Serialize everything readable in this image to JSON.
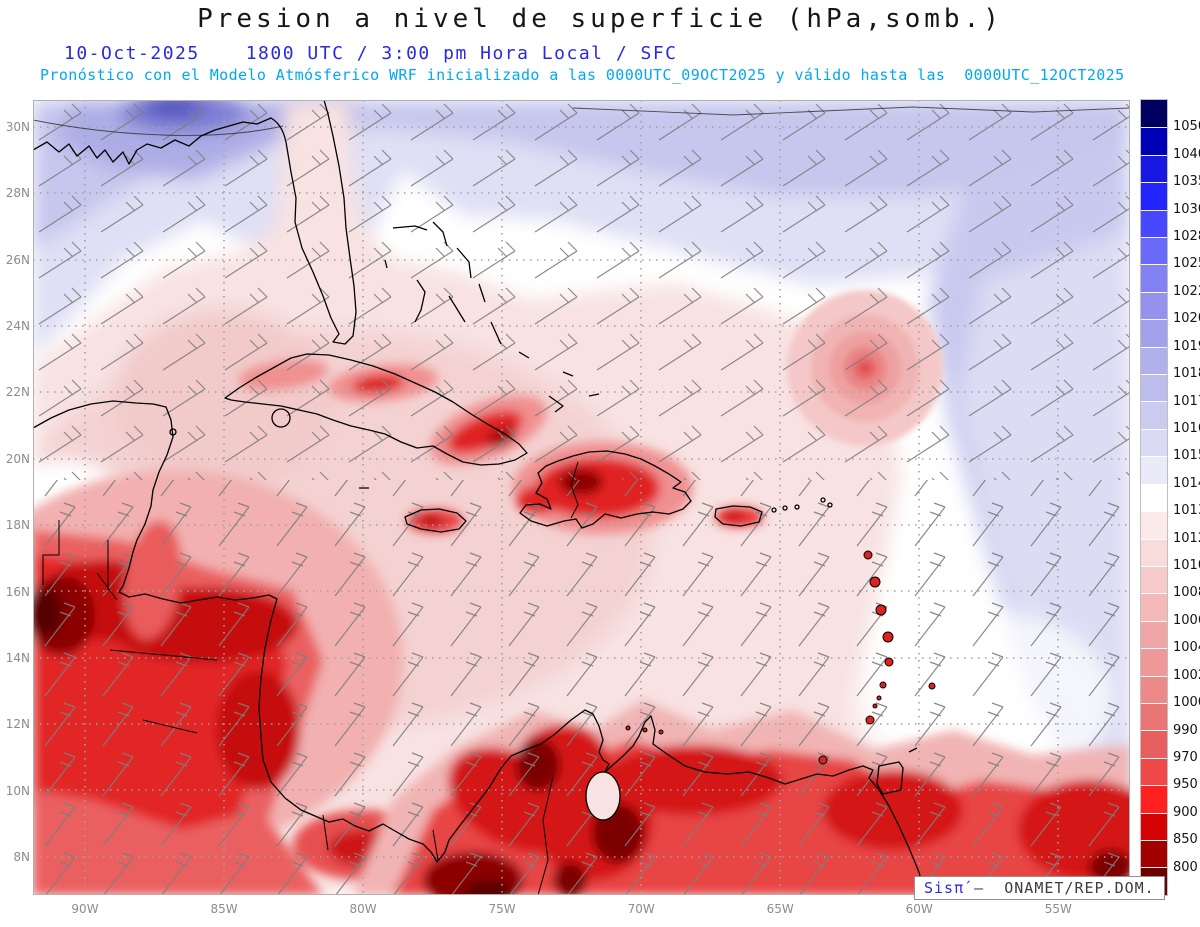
{
  "header": {
    "title": "Presion a nivel de superficie (hPa,somb.)",
    "date": "10-Oct-2025",
    "time": "1800 UTC / 3:00 pm Hora Local / SFC",
    "forecast": "Pronóstico con el Modelo Atmósferico WRF inicializado a las 0000UTC_09OCT2025 y válido hasta las  0000UTC_12OCT2025"
  },
  "axes": {
    "lat_ticks": [
      "30N",
      "28N",
      "26N",
      "24N",
      "22N",
      "20N",
      "18N",
      "16N",
      "14N",
      "12N",
      "10N",
      "8N"
    ],
    "lon_ticks": [
      "90W",
      "85W",
      "80W",
      "75W",
      "70W",
      "65W",
      "60W",
      "55W"
    ]
  },
  "colorbar": {
    "unit": "hPa",
    "labels": [
      "1050",
      "1040",
      "1035",
      "1030",
      "1028",
      "1025",
      "1022",
      "1020",
      "1019",
      "1018",
      "1017",
      "1016",
      "1015",
      "1014",
      "1013",
      "1012",
      "1010",
      "1008",
      "1006",
      "1004",
      "1002",
      "1000",
      "990",
      "970",
      "950",
      "900",
      "850",
      "800"
    ],
    "colors": [
      "#000060",
      "#0000b8",
      "#1818e0",
      "#2424ff",
      "#4848ff",
      "#6a6af8",
      "#8282f2",
      "#9393ee",
      "#a2a2ec",
      "#b0b0ea",
      "#bdbdec",
      "#cbcbf0",
      "#dadaf4",
      "#eaeaf9",
      "#ffffff",
      "#fceaea",
      "#f9dbdb",
      "#f6caca",
      "#f3b8b8",
      "#f0a6a6",
      "#ee9898",
      "#ec8989",
      "#ea7575",
      "#e85f5f",
      "#ef4848",
      "#ff2020",
      "#d40404",
      "#a30000",
      "#6b0000"
    ]
  },
  "watermark": {
    "brand": "Sisπ́",
    "text": " –  ONAMET/REP.DOM."
  },
  "colors": {
    "title_text": "#161616",
    "subtitle_blue": "#2a2ae0",
    "forecast_cyan": "#00a8f2",
    "axis_gray": "#8c8c8c",
    "low_pressure_red": "#d41212",
    "high_pressure_blue": "#4848ff",
    "wind_barb_gray": "#7e7e7e"
  }
}
